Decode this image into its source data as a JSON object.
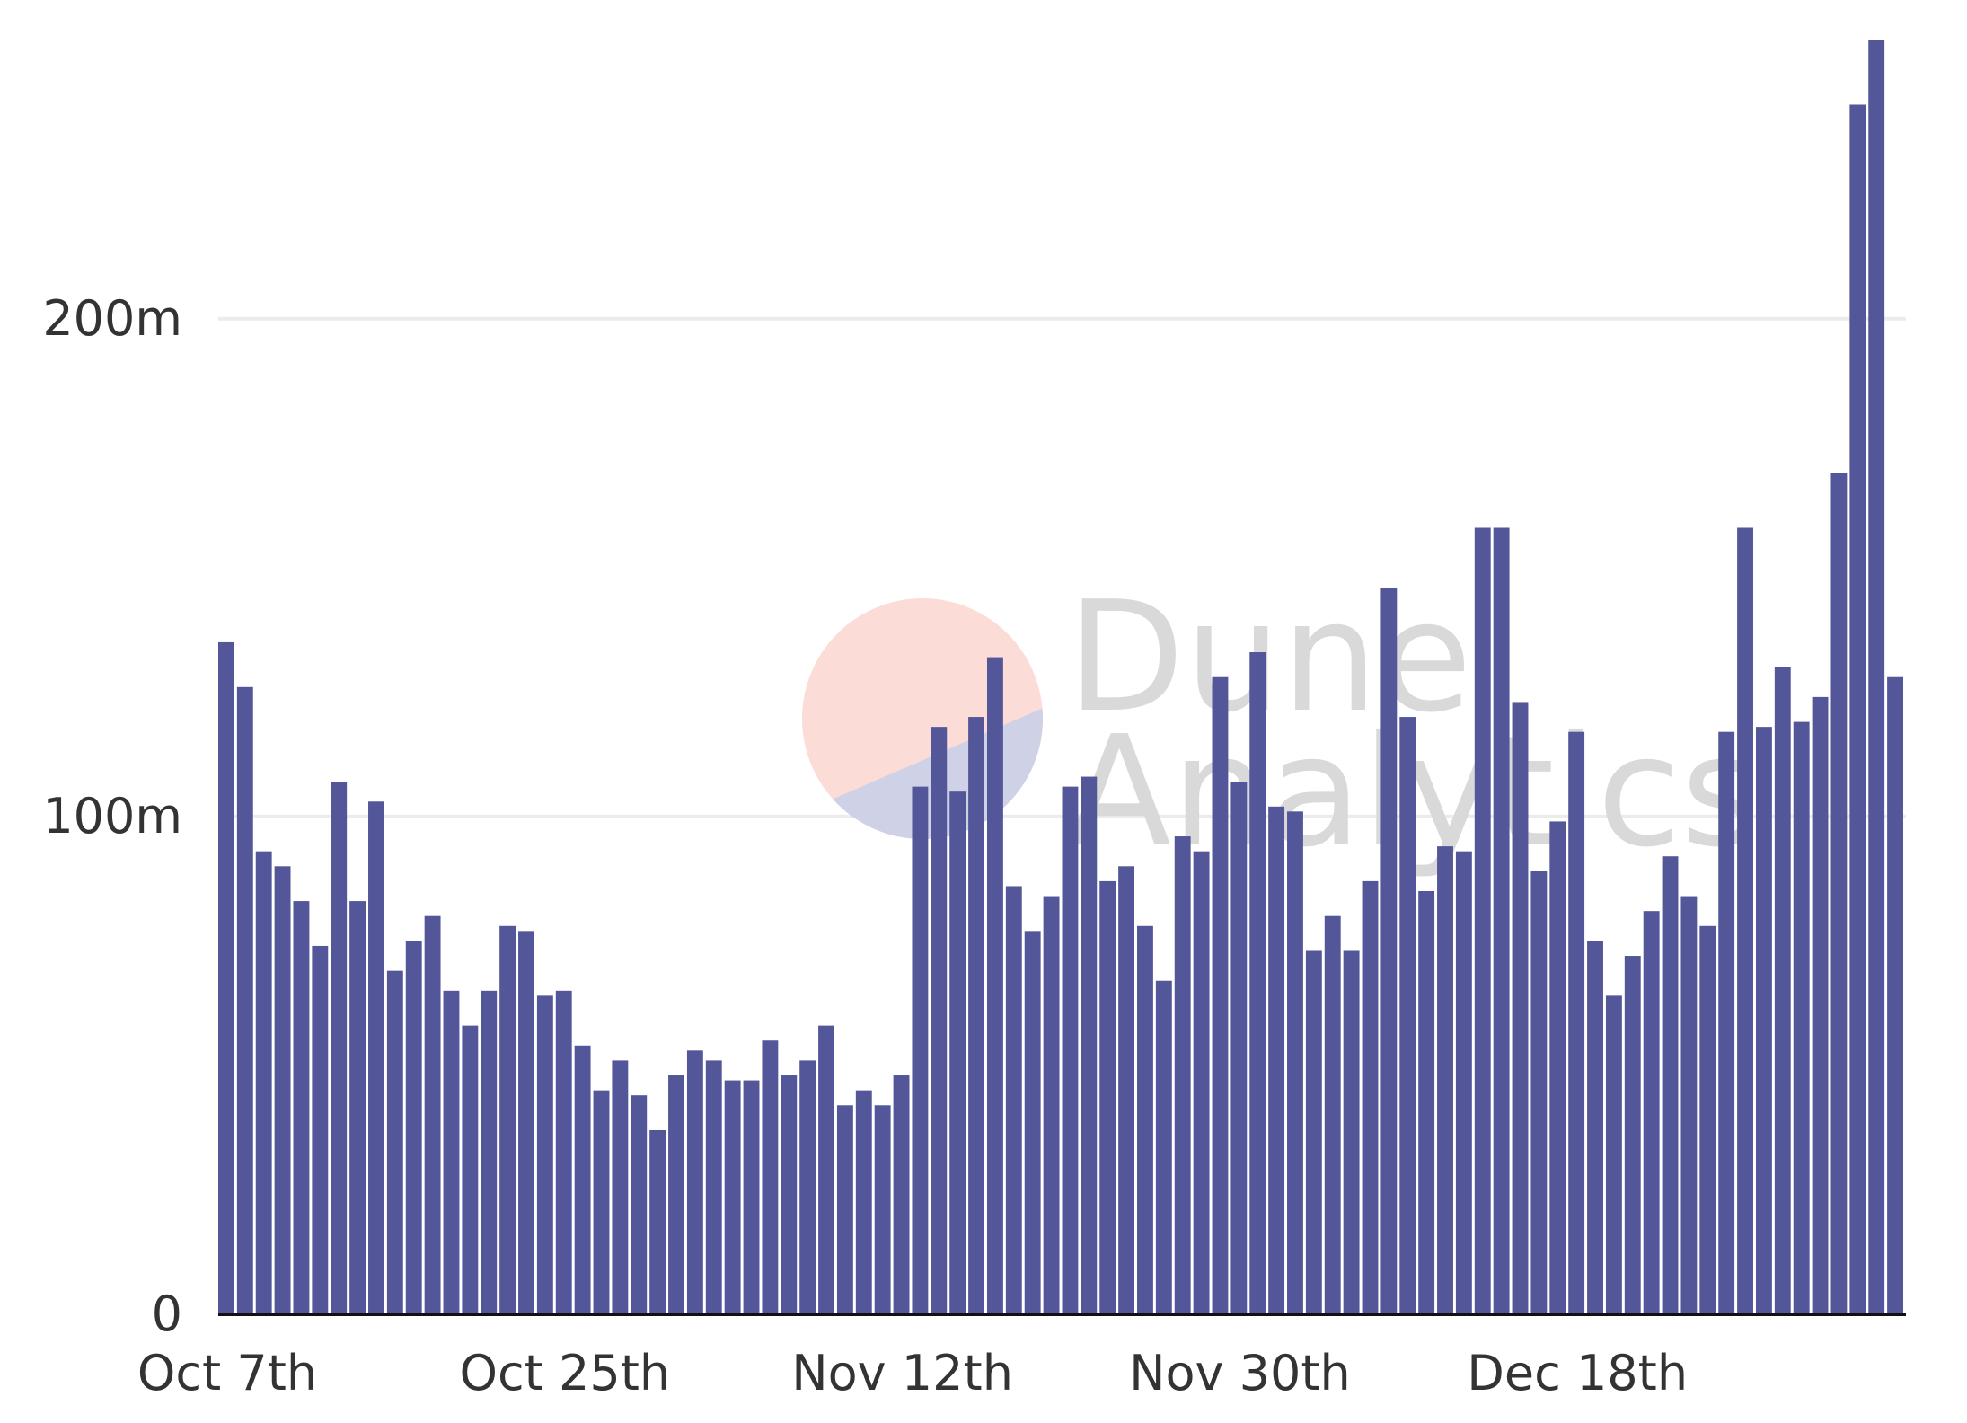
{
  "watermark": {
    "line1": "Dune",
    "line2": "Analytics"
  },
  "colors": {
    "bar": "#535698",
    "grid": "#ececec",
    "axis": "#111111",
    "logo_top": "#fbdcd6",
    "logo_bottom": "#cfd1e6",
    "watermark_text": "#d9d9d9"
  },
  "chart_data": {
    "type": "bar",
    "title": "",
    "xlabel": "",
    "ylabel": "",
    "ylim": [
      0,
      255
    ],
    "grid": true,
    "legend": "none",
    "y_ticks": [
      {
        "value": 0,
        "label": "0"
      },
      {
        "value": 100,
        "label": "100m"
      },
      {
        "value": 200,
        "label": "200m"
      }
    ],
    "x_ticks": [
      {
        "index": 0,
        "label": "Oct 7th"
      },
      {
        "index": 18,
        "label": "Oct 25th"
      },
      {
        "index": 36,
        "label": "Nov 12th"
      },
      {
        "index": 54,
        "label": "Nov 30th"
      },
      {
        "index": 72,
        "label": "Dec 18th"
      }
    ],
    "categories": [
      "Oct 7",
      "Oct 8",
      "Oct 9",
      "Oct 10",
      "Oct 11",
      "Oct 12",
      "Oct 13",
      "Oct 14",
      "Oct 15",
      "Oct 16",
      "Oct 17",
      "Oct 18",
      "Oct 19",
      "Oct 20",
      "Oct 21",
      "Oct 22",
      "Oct 23",
      "Oct 24",
      "Oct 25",
      "Oct 26",
      "Oct 27",
      "Oct 28",
      "Oct 29",
      "Oct 30",
      "Oct 31",
      "Nov 1",
      "Nov 2",
      "Nov 3",
      "Nov 4",
      "Nov 5",
      "Nov 6",
      "Nov 7",
      "Nov 8",
      "Nov 9",
      "Nov 10",
      "Nov 11",
      "Nov 12",
      "Nov 13",
      "Nov 14",
      "Nov 15",
      "Nov 16",
      "Nov 17",
      "Nov 18",
      "Nov 19",
      "Nov 20",
      "Nov 21",
      "Nov 22",
      "Nov 23",
      "Nov 24",
      "Nov 25",
      "Nov 26",
      "Nov 27",
      "Nov 28",
      "Nov 29",
      "Nov 30",
      "Dec 1",
      "Dec 2",
      "Dec 3",
      "Dec 4",
      "Dec 5",
      "Dec 6",
      "Dec 7",
      "Dec 8",
      "Dec 9",
      "Dec 10",
      "Dec 11",
      "Dec 12",
      "Dec 13",
      "Dec 14",
      "Dec 15",
      "Dec 16",
      "Dec 17",
      "Dec 18",
      "Dec 19",
      "Dec 20",
      "Dec 21",
      "Dec 22",
      "Dec 23",
      "Dec 24",
      "Dec 25",
      "Dec 26",
      "Dec 27",
      "Dec 28",
      "Dec 29",
      "Dec 30",
      "Dec 31",
      "Jan 1",
      "Jan 2",
      "Jan 3",
      "Jan 4"
    ],
    "values": [
      135,
      126,
      93,
      90,
      83,
      74,
      107,
      83,
      103,
      69,
      75,
      80,
      65,
      58,
      65,
      78,
      77,
      64,
      65,
      54,
      45,
      51,
      44,
      37,
      48,
      53,
      51,
      47,
      47,
      55,
      48,
      51,
      58,
      42,
      45,
      42,
      48,
      106,
      118,
      105,
      120,
      132,
      86,
      77,
      84,
      106,
      108,
      87,
      90,
      78,
      67,
      96,
      93,
      128,
      107,
      133,
      102,
      101,
      73,
      80,
      73,
      87,
      146,
      120,
      85,
      94,
      93,
      158,
      158,
      123,
      89,
      99,
      117,
      75,
      64,
      72,
      81,
      92,
      84,
      78,
      117,
      158,
      118,
      130,
      119,
      124,
      169,
      243,
      256,
      128
    ]
  }
}
